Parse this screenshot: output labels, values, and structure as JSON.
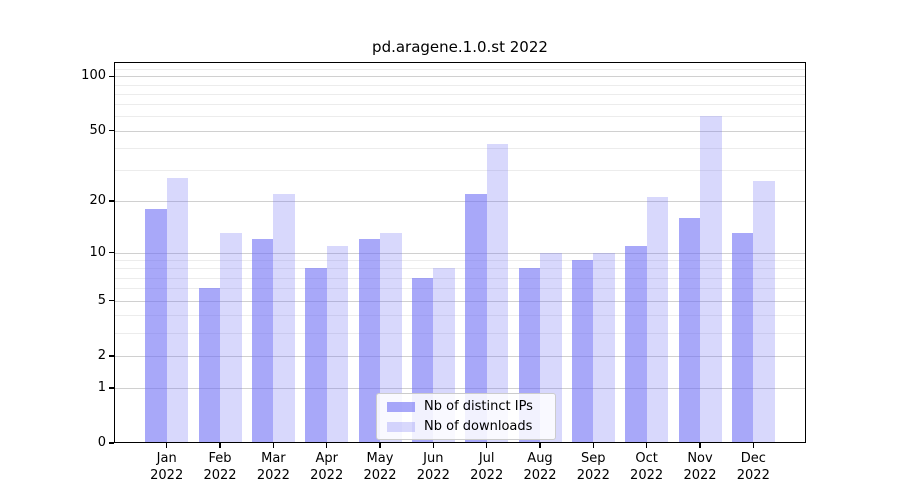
{
  "title": "pd.aragene.1.0.st 2022",
  "chart_data": {
    "type": "bar",
    "title": "pd.aragene.1.0.st 2022",
    "categories": [
      "Jan 2022",
      "Feb 2022",
      "Mar 2022",
      "Apr 2022",
      "May 2022",
      "Jun 2022",
      "Jul 2022",
      "Aug 2022",
      "Sep 2022",
      "Oct 2022",
      "Nov 2022",
      "Dec 2022"
    ],
    "series": [
      {
        "name": "Nb of distinct IPs",
        "color": "rgba(110,110,245,0.60)",
        "values": [
          18,
          6,
          12,
          8,
          12,
          7,
          22,
          8,
          9,
          11,
          16,
          13
        ]
      },
      {
        "name": "Nb of downloads",
        "color": "rgba(110,110,245,0.27)",
        "values": [
          27,
          13,
          22,
          11,
          13,
          8,
          42,
          10,
          10,
          21,
          60,
          26
        ]
      }
    ],
    "xlabel": "",
    "ylabel": "",
    "y_scale": "log10(1+y)",
    "ylim": [
      0,
      120
    ],
    "y_ticks": [
      100,
      50,
      20,
      10,
      5,
      2,
      1,
      0
    ],
    "y_minor_gridlines": [
      110,
      90,
      80,
      70,
      60,
      40,
      30,
      9,
      8,
      7,
      6,
      4,
      3
    ],
    "grid": true,
    "legend_position": "lower center",
    "colors": {
      "background": "#ffffff",
      "axis": "#000000",
      "major_grid": "#d0d0d0",
      "minor_grid": "#ececec"
    }
  }
}
